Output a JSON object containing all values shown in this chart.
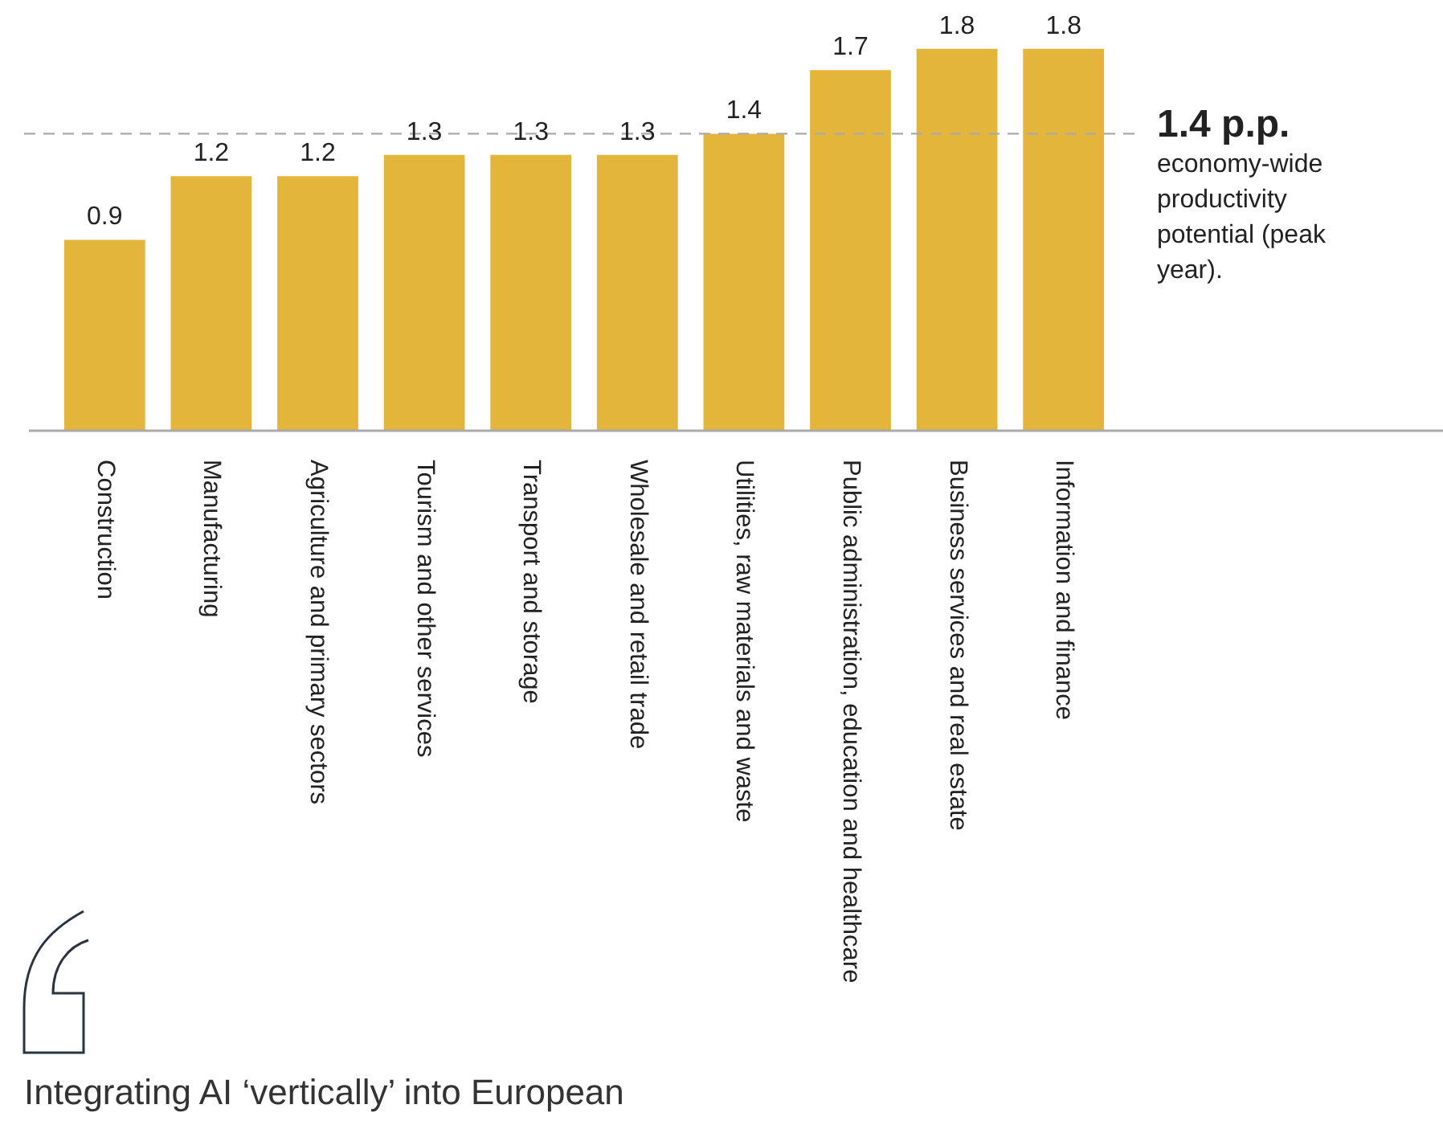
{
  "chart_data": {
    "type": "bar",
    "categories": [
      "Construction",
      "Manufacturing",
      "Agriculture and primary sectors",
      "Tourism and other services",
      "Transport and storage",
      "Wholesale and retail trade",
      "Utilities, raw materials and waste",
      "Public administration, education and healthcare",
      "Business services and real estate",
      "Information and finance"
    ],
    "values": [
      0.9,
      1.2,
      1.2,
      1.3,
      1.3,
      1.3,
      1.4,
      1.7,
      1.8,
      1.8
    ],
    "color": "#e3b53a",
    "data_labels": true,
    "ref_lines": [
      {
        "axis": "y",
        "value": 1.4,
        "label": "1.4 p.p.",
        "color": "#aaaaaa",
        "line_style": "dashed"
      }
    ],
    "annotations": [
      "economy-wide productivity potential (peak year).",
      "Integrating AI ‘vertically’ into European"
    ]
  }
}
